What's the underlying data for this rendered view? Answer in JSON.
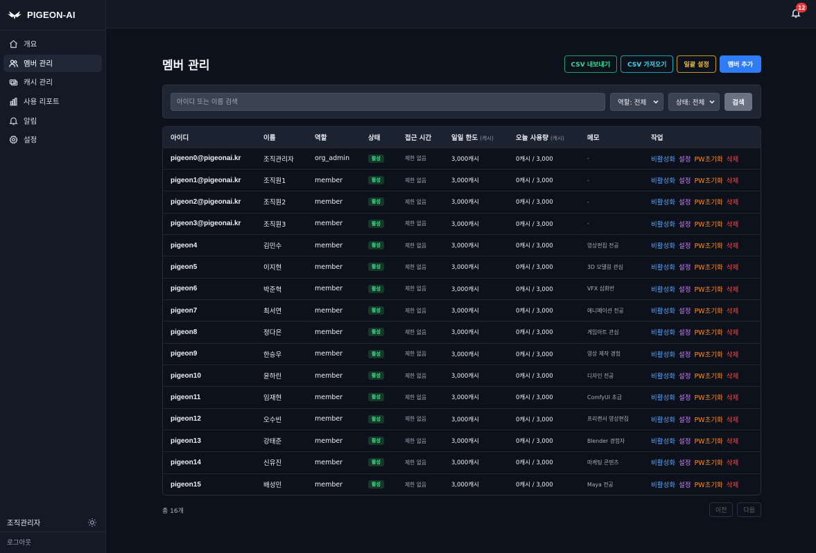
{
  "brand": {
    "name": "PIGEON-AI"
  },
  "nav": [
    {
      "label": "개요",
      "icon": "home-icon"
    },
    {
      "label": "멤버 관리",
      "icon": "users-icon",
      "active": true
    },
    {
      "label": "캐시 관리",
      "icon": "cash-icon"
    },
    {
      "label": "사용 리포트",
      "icon": "bar-chart-icon"
    },
    {
      "label": "알림",
      "icon": "bell-icon"
    },
    {
      "label": "설정",
      "icon": "gear-icon"
    }
  ],
  "sidebar_footer": {
    "user": "조직관리자",
    "logout": "로그아웃"
  },
  "topbar": {
    "notification_count": "12"
  },
  "page": {
    "title": "멤버 관리"
  },
  "actions": {
    "export": "CSV 내보내기",
    "import": "CSV 가져오기",
    "bulk": "일괄 설정",
    "add": "멤버 추가"
  },
  "filters": {
    "search_placeholder": "아이디 또는 이름 검색",
    "role": "역할: 전체",
    "status": "상태: 전체",
    "search_button": "검색"
  },
  "table": {
    "headers": {
      "id": "아이디",
      "name": "이름",
      "role": "역할",
      "status": "상태",
      "access": "접근 시간",
      "daily": "일일 한도",
      "daily_unit": "(캐시)",
      "today": "오늘 사용량",
      "today_unit": "(캐시)",
      "memo": "메모",
      "actions": "작업"
    },
    "action_labels": {
      "deactivate": "비활성화",
      "settings": "설정",
      "pw_reset": "PW초기화",
      "delete": "삭제"
    },
    "rows": [
      {
        "id": "pigeon0@pigeonai.kr",
        "name": "조직관리자",
        "role": "org_admin",
        "status": "활성",
        "access": "제한 없음",
        "limit": "3,000캐시",
        "usage": "0캐시 / 3,000",
        "memo": "-"
      },
      {
        "id": "pigeon1@pigeonai.kr",
        "name": "조직원1",
        "role": "member",
        "status": "활성",
        "access": "제한 없음",
        "limit": "3,000캐시",
        "usage": "0캐시 / 3,000",
        "memo": "-"
      },
      {
        "id": "pigeon2@pigeonai.kr",
        "name": "조직원2",
        "role": "member",
        "status": "활성",
        "access": "제한 없음",
        "limit": "3,000캐시",
        "usage": "0캐시 / 3,000",
        "memo": "-"
      },
      {
        "id": "pigeon3@pigeonai.kr",
        "name": "조직원3",
        "role": "member",
        "status": "활성",
        "access": "제한 없음",
        "limit": "3,000캐시",
        "usage": "0캐시 / 3,000",
        "memo": "-"
      },
      {
        "id": "pigeon4",
        "name": "김민수",
        "role": "member",
        "status": "활성",
        "access": "제한 없음",
        "limit": "3,000캐시",
        "usage": "0캐시 / 3,000",
        "memo": "영상편집 전공"
      },
      {
        "id": "pigeon5",
        "name": "이지현",
        "role": "member",
        "status": "활성",
        "access": "제한 없음",
        "limit": "3,000캐시",
        "usage": "0캐시 / 3,000",
        "memo": "3D 모델링 관심"
      },
      {
        "id": "pigeon6",
        "name": "박준혁",
        "role": "member",
        "status": "활성",
        "access": "제한 없음",
        "limit": "3,000캐시",
        "usage": "0캐시 / 3,000",
        "memo": "VFX 심화반"
      },
      {
        "id": "pigeon7",
        "name": "최서연",
        "role": "member",
        "status": "활성",
        "access": "제한 없음",
        "limit": "3,000캐시",
        "usage": "0캐시 / 3,000",
        "memo": "애니메이션 전공"
      },
      {
        "id": "pigeon8",
        "name": "정다은",
        "role": "member",
        "status": "활성",
        "access": "제한 없음",
        "limit": "3,000캐시",
        "usage": "0캐시 / 3,000",
        "memo": "게임아트 관심"
      },
      {
        "id": "pigeon9",
        "name": "한승우",
        "role": "member",
        "status": "활성",
        "access": "제한 없음",
        "limit": "3,000캐시",
        "usage": "0캐시 / 3,000",
        "memo": "영상 제작 경험"
      },
      {
        "id": "pigeon10",
        "name": "윤하린",
        "role": "member",
        "status": "활성",
        "access": "제한 없음",
        "limit": "3,000캐시",
        "usage": "0캐시 / 3,000",
        "memo": "디자인 전공"
      },
      {
        "id": "pigeon11",
        "name": "임재현",
        "role": "member",
        "status": "활성",
        "access": "제한 없음",
        "limit": "3,000캐시",
        "usage": "0캐시 / 3,000",
        "memo": "ComfyUI 초급"
      },
      {
        "id": "pigeon12",
        "name": "오수빈",
        "role": "member",
        "status": "활성",
        "access": "제한 없음",
        "limit": "3,000캐시",
        "usage": "0캐시 / 3,000",
        "memo": "프리랜서 영상편집"
      },
      {
        "id": "pigeon13",
        "name": "강태준",
        "role": "member",
        "status": "활성",
        "access": "제한 없음",
        "limit": "3,000캐시",
        "usage": "0캐시 / 3,000",
        "memo": "Blender 경험자"
      },
      {
        "id": "pigeon14",
        "name": "신유진",
        "role": "member",
        "status": "활성",
        "access": "제한 없음",
        "limit": "3,000캐시",
        "usage": "0캐시 / 3,000",
        "memo": "마케팅 콘텐츠"
      },
      {
        "id": "pigeon15",
        "name": "배성민",
        "role": "member",
        "status": "활성",
        "access": "제한 없음",
        "limit": "3,000캐시",
        "usage": "0캐시 / 3,000",
        "memo": "Maya 전공"
      }
    ]
  },
  "footer": {
    "total": "총 16개",
    "prev": "이전",
    "next": "다음"
  }
}
